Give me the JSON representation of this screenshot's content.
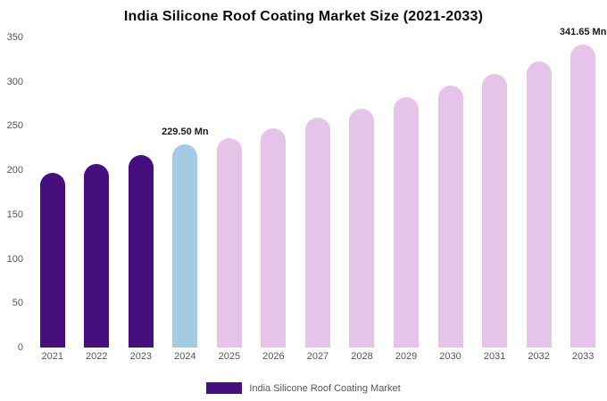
{
  "chart_data": {
    "type": "bar",
    "title": "India Silicone Roof Coating Market Size (2021-2033)",
    "categories": [
      "2021",
      "2022",
      "2023",
      "2024",
      "2025",
      "2026",
      "2027",
      "2028",
      "2029",
      "2030",
      "2031",
      "2032",
      "2033"
    ],
    "values": [
      197,
      207,
      217,
      229.5,
      236,
      247,
      259,
      270,
      283,
      296,
      309,
      323,
      341.65
    ],
    "unit": "Mn",
    "ylim": [
      0,
      350
    ],
    "yticks": [
      0,
      50,
      100,
      150,
      200,
      250,
      300,
      350
    ],
    "grid": false,
    "legend_position": "bottom",
    "bar_colors": [
      "#45107E",
      "#45107E",
      "#45107E",
      "#A5CBE2",
      "#E6C3E8",
      "#E6C3E8",
      "#E6C3E8",
      "#E6C3E8",
      "#E6C3E8",
      "#E6C3E8",
      "#E6C3E8",
      "#E6C3E8",
      "#E6C3E8"
    ],
    "annotations": [
      {
        "category": "2024",
        "text": "229.50 Mn"
      },
      {
        "category": "2033",
        "text": "341.65 Mn"
      }
    ],
    "legend": {
      "label": "India Silicone Roof Coating Market",
      "swatch_color": "#45107E"
    }
  },
  "colors": {
    "past_bars": "#45107E",
    "highlight_bar": "#A5CBE2",
    "forecast_bars": "#E6C3E8",
    "axis_text": "#555555",
    "title_text": "#0A0A0A",
    "background": "#FFFFFF"
  }
}
